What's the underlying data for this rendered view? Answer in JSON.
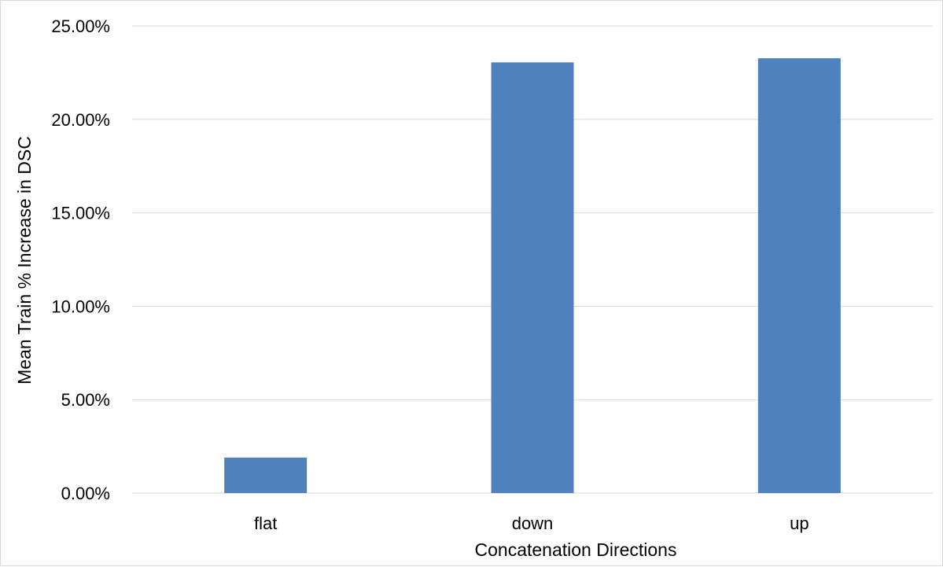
{
  "chart_data": {
    "type": "bar",
    "title": "",
    "xlabel": "Concatenation Directions",
    "ylabel": "Mean Train % Increase in DSC",
    "categories": [
      "flat",
      "down",
      "up"
    ],
    "values": [
      0.019,
      0.2305,
      0.2327
    ],
    "ylim": [
      0,
      0.25
    ],
    "yticks": [
      0,
      0.05,
      0.1,
      0.15,
      0.2,
      0.25
    ],
    "ytick_labels": [
      "0.00%",
      "5.00%",
      "10.00%",
      "15.00%",
      "20.00%",
      "25.00%"
    ],
    "grid": true,
    "legend": "none",
    "bar_color": "#4f81bd",
    "grid_color": "#d9d9d9"
  }
}
